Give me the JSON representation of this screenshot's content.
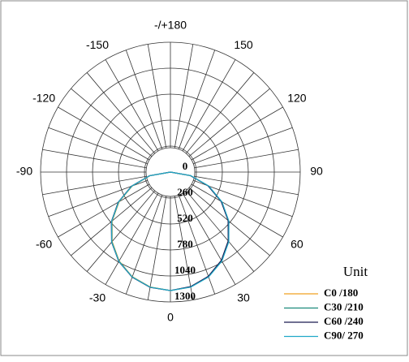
{
  "chart_data": {
    "type": "polar",
    "angles": [
      -90,
      -80,
      -70,
      -60,
      -50,
      -40,
      -30,
      -20,
      -10,
      0,
      10,
      20,
      30,
      40,
      50,
      60,
      70,
      80,
      90
    ],
    "series": [
      {
        "name": "C0 /180",
        "color": "#f0a020",
        "values": [
          0,
          206,
          406,
          593,
          762,
          908,
          1027,
          1115,
          1168,
          1186,
          1168,
          1115,
          1027,
          908,
          762,
          593,
          406,
          206,
          0
        ]
      },
      {
        "name": "C30 /210",
        "color": "#1a8a7a",
        "values": [
          0,
          210,
          410,
          598,
          766,
          912,
          1030,
          1118,
          1170,
          1186,
          1166,
          1112,
          1022,
          904,
          758,
          588,
          402,
          204,
          0
        ]
      },
      {
        "name": "C60 /240",
        "color": "#1a1a50",
        "values": [
          0,
          214,
          416,
          604,
          772,
          916,
          1034,
          1120,
          1172,
          1186,
          1164,
          1110,
          1020,
          900,
          754,
          586,
          400,
          202,
          0
        ]
      },
      {
        "name": "C90/ 270",
        "color": "#20a8c8",
        "values": [
          0,
          212,
          412,
          600,
          768,
          914,
          1032,
          1118,
          1170,
          1186,
          1170,
          1118,
          1030,
          910,
          764,
          596,
          410,
          208,
          0
        ]
      }
    ],
    "rlim": [
      0,
      1300
    ],
    "rticks": [
      0,
      260,
      520,
      780,
      1040,
      1300
    ],
    "angle_ticks": [
      {
        "value": 180,
        "label": "-/+180"
      },
      -150,
      -120,
      -90,
      -60,
      -30,
      0,
      30,
      60,
      90,
      120,
      150
    ],
    "legend_title": "Unit"
  }
}
